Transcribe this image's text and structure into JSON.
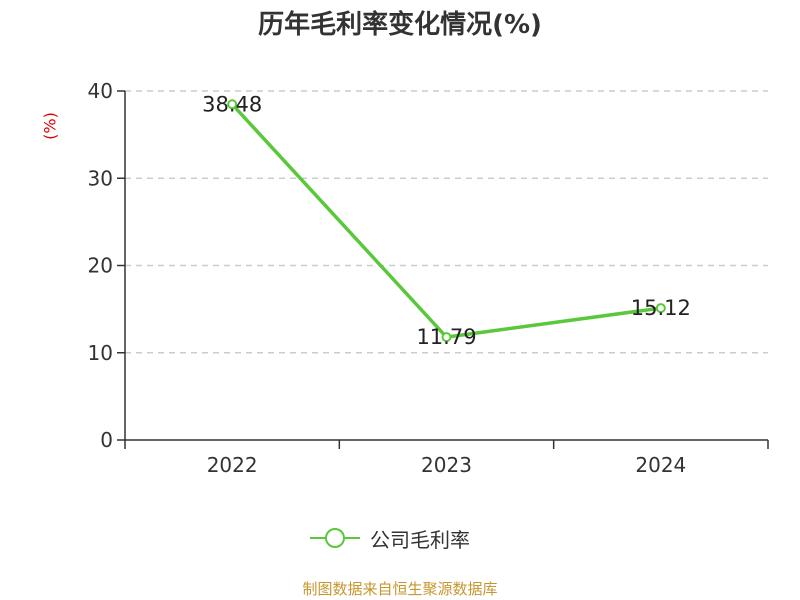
{
  "chart_data": {
    "type": "line",
    "title": "历年毛利率变化情况(%)",
    "ylabel": "(%)",
    "categories": [
      "2022",
      "2023",
      "2024"
    ],
    "series": [
      {
        "name": "公司毛利率",
        "values": [
          38.48,
          11.79,
          15.12
        ],
        "labels": [
          "38.48",
          "11.79",
          "15.12"
        ]
      }
    ],
    "ylim": [
      0,
      40
    ],
    "yticks": [
      0,
      10,
      20,
      30,
      40
    ],
    "grid": true,
    "legend_position": "bottom"
  },
  "legend": {
    "label": "公司毛利率"
  },
  "source": "制图数据来自恒生聚源数据库",
  "colors": {
    "line": "#5ac83a",
    "axis": "#333333",
    "grid": "#cccccc",
    "ylabel": "#e00000",
    "source": "#c8962e",
    "title": "#333333"
  }
}
